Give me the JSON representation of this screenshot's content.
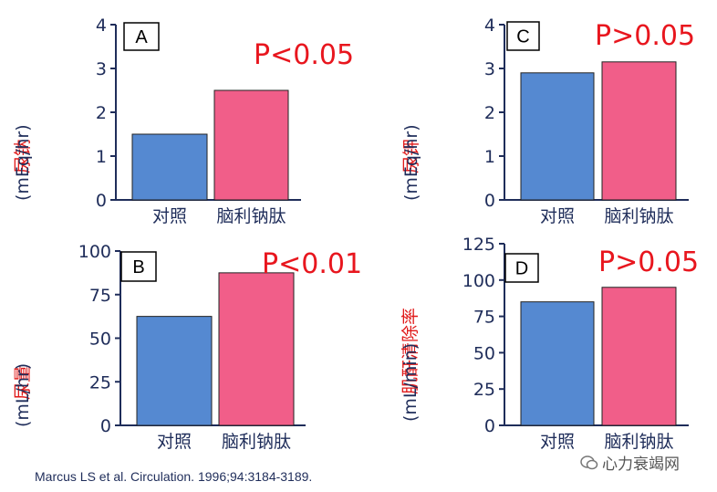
{
  "colors": {
    "control": "#5589d1",
    "treatment": "#f15e89",
    "axis": "#1f2d5a",
    "pvalue": "#e8161e",
    "ylabel_cn": "#e01a1a"
  },
  "chart_data": [
    {
      "panel": "A",
      "type": "bar",
      "categories": [
        "对照",
        "脑利钠肽"
      ],
      "values": [
        1.5,
        2.5
      ],
      "ylim": [
        0,
        4
      ],
      "yticks": [
        "0",
        "1",
        "2",
        "3",
        "4"
      ],
      "ylabel_cn": "尿钠",
      "ylabel_unit": "(mEq/hr)",
      "annotation": "P<0.05"
    },
    {
      "panel": "B",
      "type": "bar",
      "categories": [
        "对照",
        "脑利钠肽"
      ],
      "values": [
        62.5,
        87.5
      ],
      "ylim": [
        0,
        100
      ],
      "yticks": [
        "0",
        "25",
        "50",
        "75",
        "100"
      ],
      "ylabel_cn": "尿量",
      "ylabel_unit": "(mL/hr)",
      "annotation": "P<0.01"
    },
    {
      "panel": "C",
      "type": "bar",
      "categories": [
        "对照",
        "脑利钠肽"
      ],
      "values": [
        2.9,
        3.15
      ],
      "ylim": [
        0,
        4
      ],
      "yticks": [
        "0",
        "1",
        "2",
        "3",
        "4"
      ],
      "ylabel_cn": "尿钾",
      "ylabel_unit": "(mEq/hr)",
      "annotation": "P>0.05"
    },
    {
      "panel": "D",
      "type": "bar",
      "categories": [
        "对照",
        "脑利钠肽"
      ],
      "values": [
        85,
        95
      ],
      "ylim": [
        0,
        125
      ],
      "yticks": [
        "0",
        "25",
        "50",
        "75",
        "100",
        "125"
      ],
      "ylabel_cn": "肌酐清除率",
      "ylabel_unit": "(mL/min)",
      "annotation": "P>0.05"
    }
  ],
  "citation": "Marcus LS et al.  Circulation. 1996;94:3184-3189.",
  "watermark": "心力衰竭网"
}
